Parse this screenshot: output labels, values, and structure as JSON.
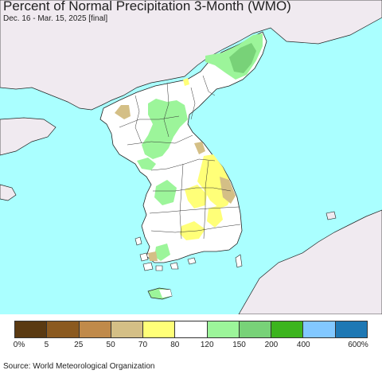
{
  "title": "Percent of Normal Precipitation 3-Month (WMO)",
  "subtitle": "Dec. 16 - Mar. 15, 2025 [final]",
  "source": "Source: World Meteorological Organization",
  "colors": {
    "sea": "#aaffff",
    "foreign_land": "#f0eaf0",
    "base_land": "#ffffff",
    "border": "#222222"
  },
  "legend": {
    "colors": [
      "#5a3a12",
      "#8b5a20",
      "#c08a4a",
      "#d4bf86",
      "#ffff78",
      "#ffffff",
      "#9cf59a",
      "#78d278",
      "#3cb41e",
      "#82c8ff",
      "#1e78b4"
    ],
    "labels": [
      "0%",
      "5",
      "25",
      "50",
      "70",
      "80",
      "120",
      "150",
      "200",
      "400",
      "600%"
    ]
  }
}
